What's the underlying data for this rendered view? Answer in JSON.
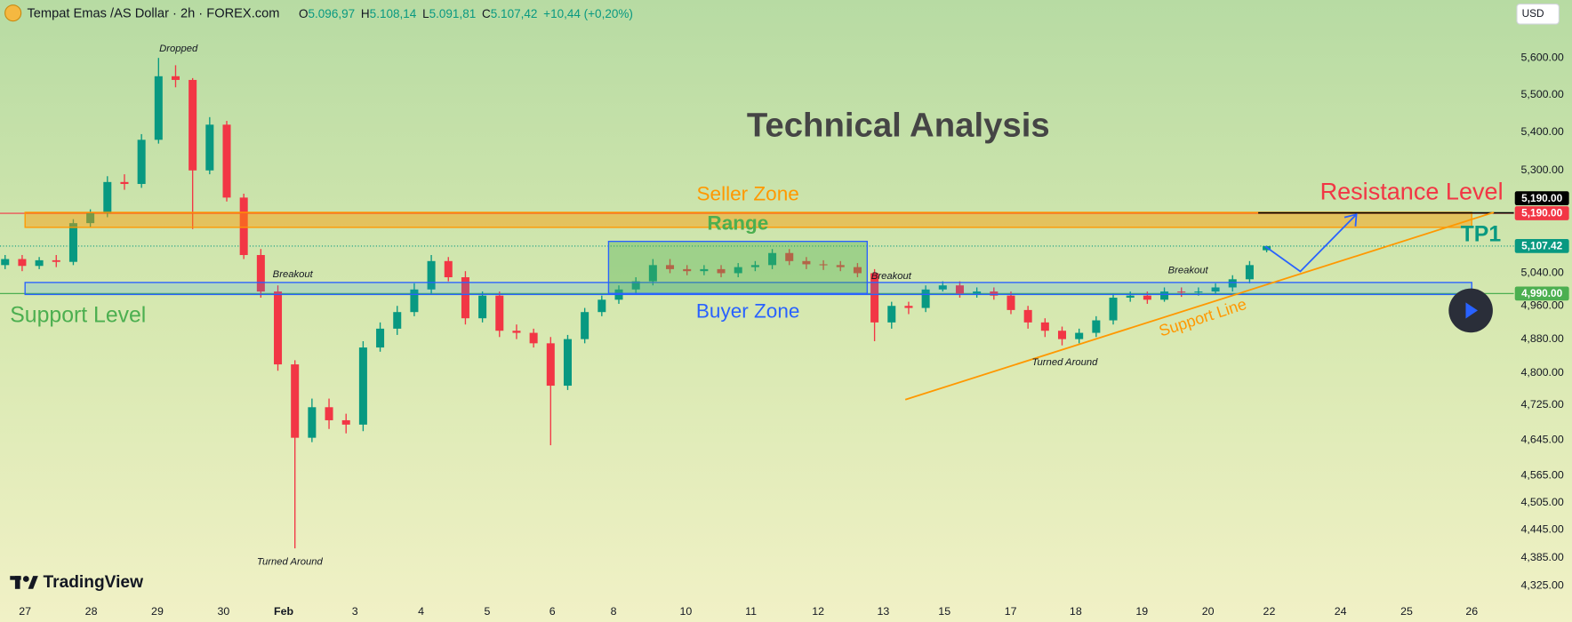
{
  "chart_data": {
    "type": "candlestick",
    "title": "Tempat Emas /AS Dollar · 2h · FOREX.com",
    "ohlc": [
      {
        "label": "O",
        "value": "5.096,97"
      },
      {
        "label": "H",
        "value": "5.108,14"
      },
      {
        "label": "L",
        "value": "5.091,81"
      },
      {
        "label": "C",
        "value": "5.107,42"
      }
    ],
    "change": "+10,44 (+0,20%)",
    "currency": "USD",
    "log_scale": true,
    "grid": false,
    "up_color": "#089981",
    "down_color": "#f23645",
    "xlim": [
      -0.3,
      88.5
    ],
    "ylim": [
      4293,
      5761
    ],
    "xticks": [
      {
        "value": 1.17,
        "label": "27"
      },
      {
        "value": 5.05,
        "label": "28"
      },
      {
        "value": 8.93,
        "label": "29"
      },
      {
        "value": 12.81,
        "label": "30"
      },
      {
        "value": 16.34,
        "label": "Feb"
      },
      {
        "value": 20.52,
        "label": "3"
      },
      {
        "value": 24.4,
        "label": "4"
      },
      {
        "value": 28.28,
        "label": "5"
      },
      {
        "value": 32.1,
        "label": "6"
      },
      {
        "value": 35.69,
        "label": "8"
      },
      {
        "value": 39.93,
        "label": "10"
      },
      {
        "value": 43.75,
        "label": "11"
      },
      {
        "value": 47.69,
        "label": "12"
      },
      {
        "value": 51.51,
        "label": "13"
      },
      {
        "value": 55.1,
        "label": "15"
      },
      {
        "value": 58.98,
        "label": "17"
      },
      {
        "value": 62.8,
        "label": "18"
      },
      {
        "value": 66.68,
        "label": "19"
      },
      {
        "value": 70.56,
        "label": "20"
      },
      {
        "value": 74.15,
        "label": "22"
      },
      {
        "value": 78.33,
        "label": "24"
      },
      {
        "value": 82.21,
        "label": "25"
      },
      {
        "value": 86.03,
        "label": "26"
      }
    ],
    "yticks": [
      {
        "value": 5600,
        "label": "5,600.00"
      },
      {
        "value": 5500,
        "label": "5,500.00"
      },
      {
        "value": 5400,
        "label": "5,400.00"
      },
      {
        "value": 5300,
        "label": "5,300.00"
      },
      {
        "value": 5040,
        "label": "5,040.00"
      },
      {
        "value": 4960,
        "label": "4,960.00"
      },
      {
        "value": 4880,
        "label": "4,880.00"
      },
      {
        "value": 4800,
        "label": "4,800.00"
      },
      {
        "value": 4725,
        "label": "4,725.00"
      },
      {
        "value": 4645,
        "label": "4,645.00"
      },
      {
        "value": 4565,
        "label": "4,565.00"
      },
      {
        "value": 4505,
        "label": "4,505.00"
      },
      {
        "value": 4445,
        "label": "4,445.00"
      },
      {
        "value": 4385,
        "label": "4,385.00"
      },
      {
        "value": 4325,
        "label": "4,325.00"
      }
    ],
    "open": [
      5060,
      5075,
      5058,
      5072,
      5068,
      5165,
      5190,
      5270,
      5265,
      5380,
      5550,
      5540,
      5300,
      5420,
      5230,
      5085,
      4995,
      4820,
      4650,
      4720,
      4690,
      4680,
      4860,
      4905,
      4945,
      5000,
      5070,
      5030,
      4930,
      4985,
      4900,
      4895,
      4870,
      4770,
      4880,
      4945,
      4975,
      5000,
      5020,
      5060,
      5050,
      5045,
      5050,
      5040,
      5055,
      5060,
      5090,
      5070,
      5062,
      5060,
      5055,
      5040,
      4920,
      4960,
      4955,
      5000,
      5010,
      4990,
      4995,
      4985,
      4950,
      4920,
      4900,
      4880,
      4895,
      4925,
      4980,
      4985,
      4975,
      4995,
      4993,
      4995,
      5005,
      5025,
      5096.97
    ],
    "high": [
      5085,
      5085,
      5080,
      5085,
      5175,
      5200,
      5285,
      5290,
      5395,
      5600,
      5580,
      5545,
      5440,
      5430,
      5240,
      5100,
      5010,
      4830,
      4740,
      4740,
      4705,
      4875,
      4920,
      4960,
      5015,
      5085,
      5080,
      5045,
      4995,
      4995,
      4915,
      4905,
      4885,
      4890,
      4955,
      4985,
      5010,
      5030,
      5075,
      5075,
      5060,
      5060,
      5060,
      5065,
      5070,
      5100,
      5100,
      5080,
      5072,
      5070,
      5065,
      5050,
      4970,
      4970,
      5010,
      5020,
      5020,
      5005,
      5005,
      4995,
      4960,
      4930,
      4910,
      4905,
      4935,
      4990,
      4995,
      4995,
      5005,
      5005,
      5005,
      5015,
      5035,
      5070,
      5108.14
    ],
    "low": [
      5050,
      5045,
      5050,
      5055,
      5060,
      5155,
      5180,
      5250,
      5255,
      5370,
      5520,
      5150,
      5290,
      5220,
      5075,
      4980,
      4805,
      4405,
      4640,
      4670,
      4660,
      4665,
      4850,
      4890,
      4935,
      4990,
      5020,
      4915,
      4920,
      4885,
      4880,
      4860,
      4633,
      4760,
      4870,
      4935,
      4965,
      4990,
      5010,
      5040,
      5035,
      5035,
      5030,
      5030,
      5045,
      5050,
      5060,
      5050,
      5048,
      5045,
      5030,
      4875,
      4905,
      4940,
      4945,
      4995,
      4980,
      4980,
      4975,
      4940,
      4905,
      4885,
      4865,
      4870,
      4885,
      4915,
      4970,
      4965,
      4970,
      4982,
      4985,
      4990,
      4995,
      5015,
      5091.81
    ],
    "close": [
      5075,
      5058,
      5072,
      5068,
      5165,
      5190,
      5270,
      5265,
      5380,
      5550,
      5540,
      5300,
      5420,
      5230,
      5085,
      4995,
      4820,
      4650,
      4720,
      4690,
      4680,
      4860,
      4905,
      4945,
      5000,
      5070,
      5030,
      4930,
      4985,
      4900,
      4895,
      4870,
      4770,
      4880,
      4945,
      4975,
      5000,
      5020,
      5060,
      5050,
      5045,
      5050,
      5040,
      5055,
      5060,
      5090,
      5070,
      5062,
      5060,
      5055,
      5040,
      4920,
      4960,
      4955,
      5000,
      5010,
      4990,
      4995,
      4985,
      4950,
      4920,
      4900,
      4880,
      4895,
      4925,
      4980,
      4985,
      4975,
      4995,
      4993,
      4995,
      5005,
      5025,
      5060,
      5107.42
    ],
    "price_labels": [
      {
        "value": 5190,
        "label": "5,190.00",
        "color": "#f23645",
        "line": "solid"
      },
      {
        "value": 5190,
        "label": "5,190.00",
        "color": "#000000",
        "line": "none"
      },
      {
        "value": 5107.42,
        "label": "5,107.42",
        "color": "#089981",
        "line": "dotted"
      },
      {
        "value": 4990,
        "label": "4,990.00",
        "color": "#4caf50",
        "line": "solid"
      }
    ],
    "annotations": [
      "Technical Analysis",
      "Seller Zone",
      "Range",
      "Buyer Zone",
      "Support Level",
      "Resistance Level",
      "TP1",
      "Support Line",
      "Dropped",
      "Breakout",
      "Breakout",
      "Breakout",
      "Turned Around",
      "Turned Around"
    ]
  },
  "brand": "TradingView"
}
